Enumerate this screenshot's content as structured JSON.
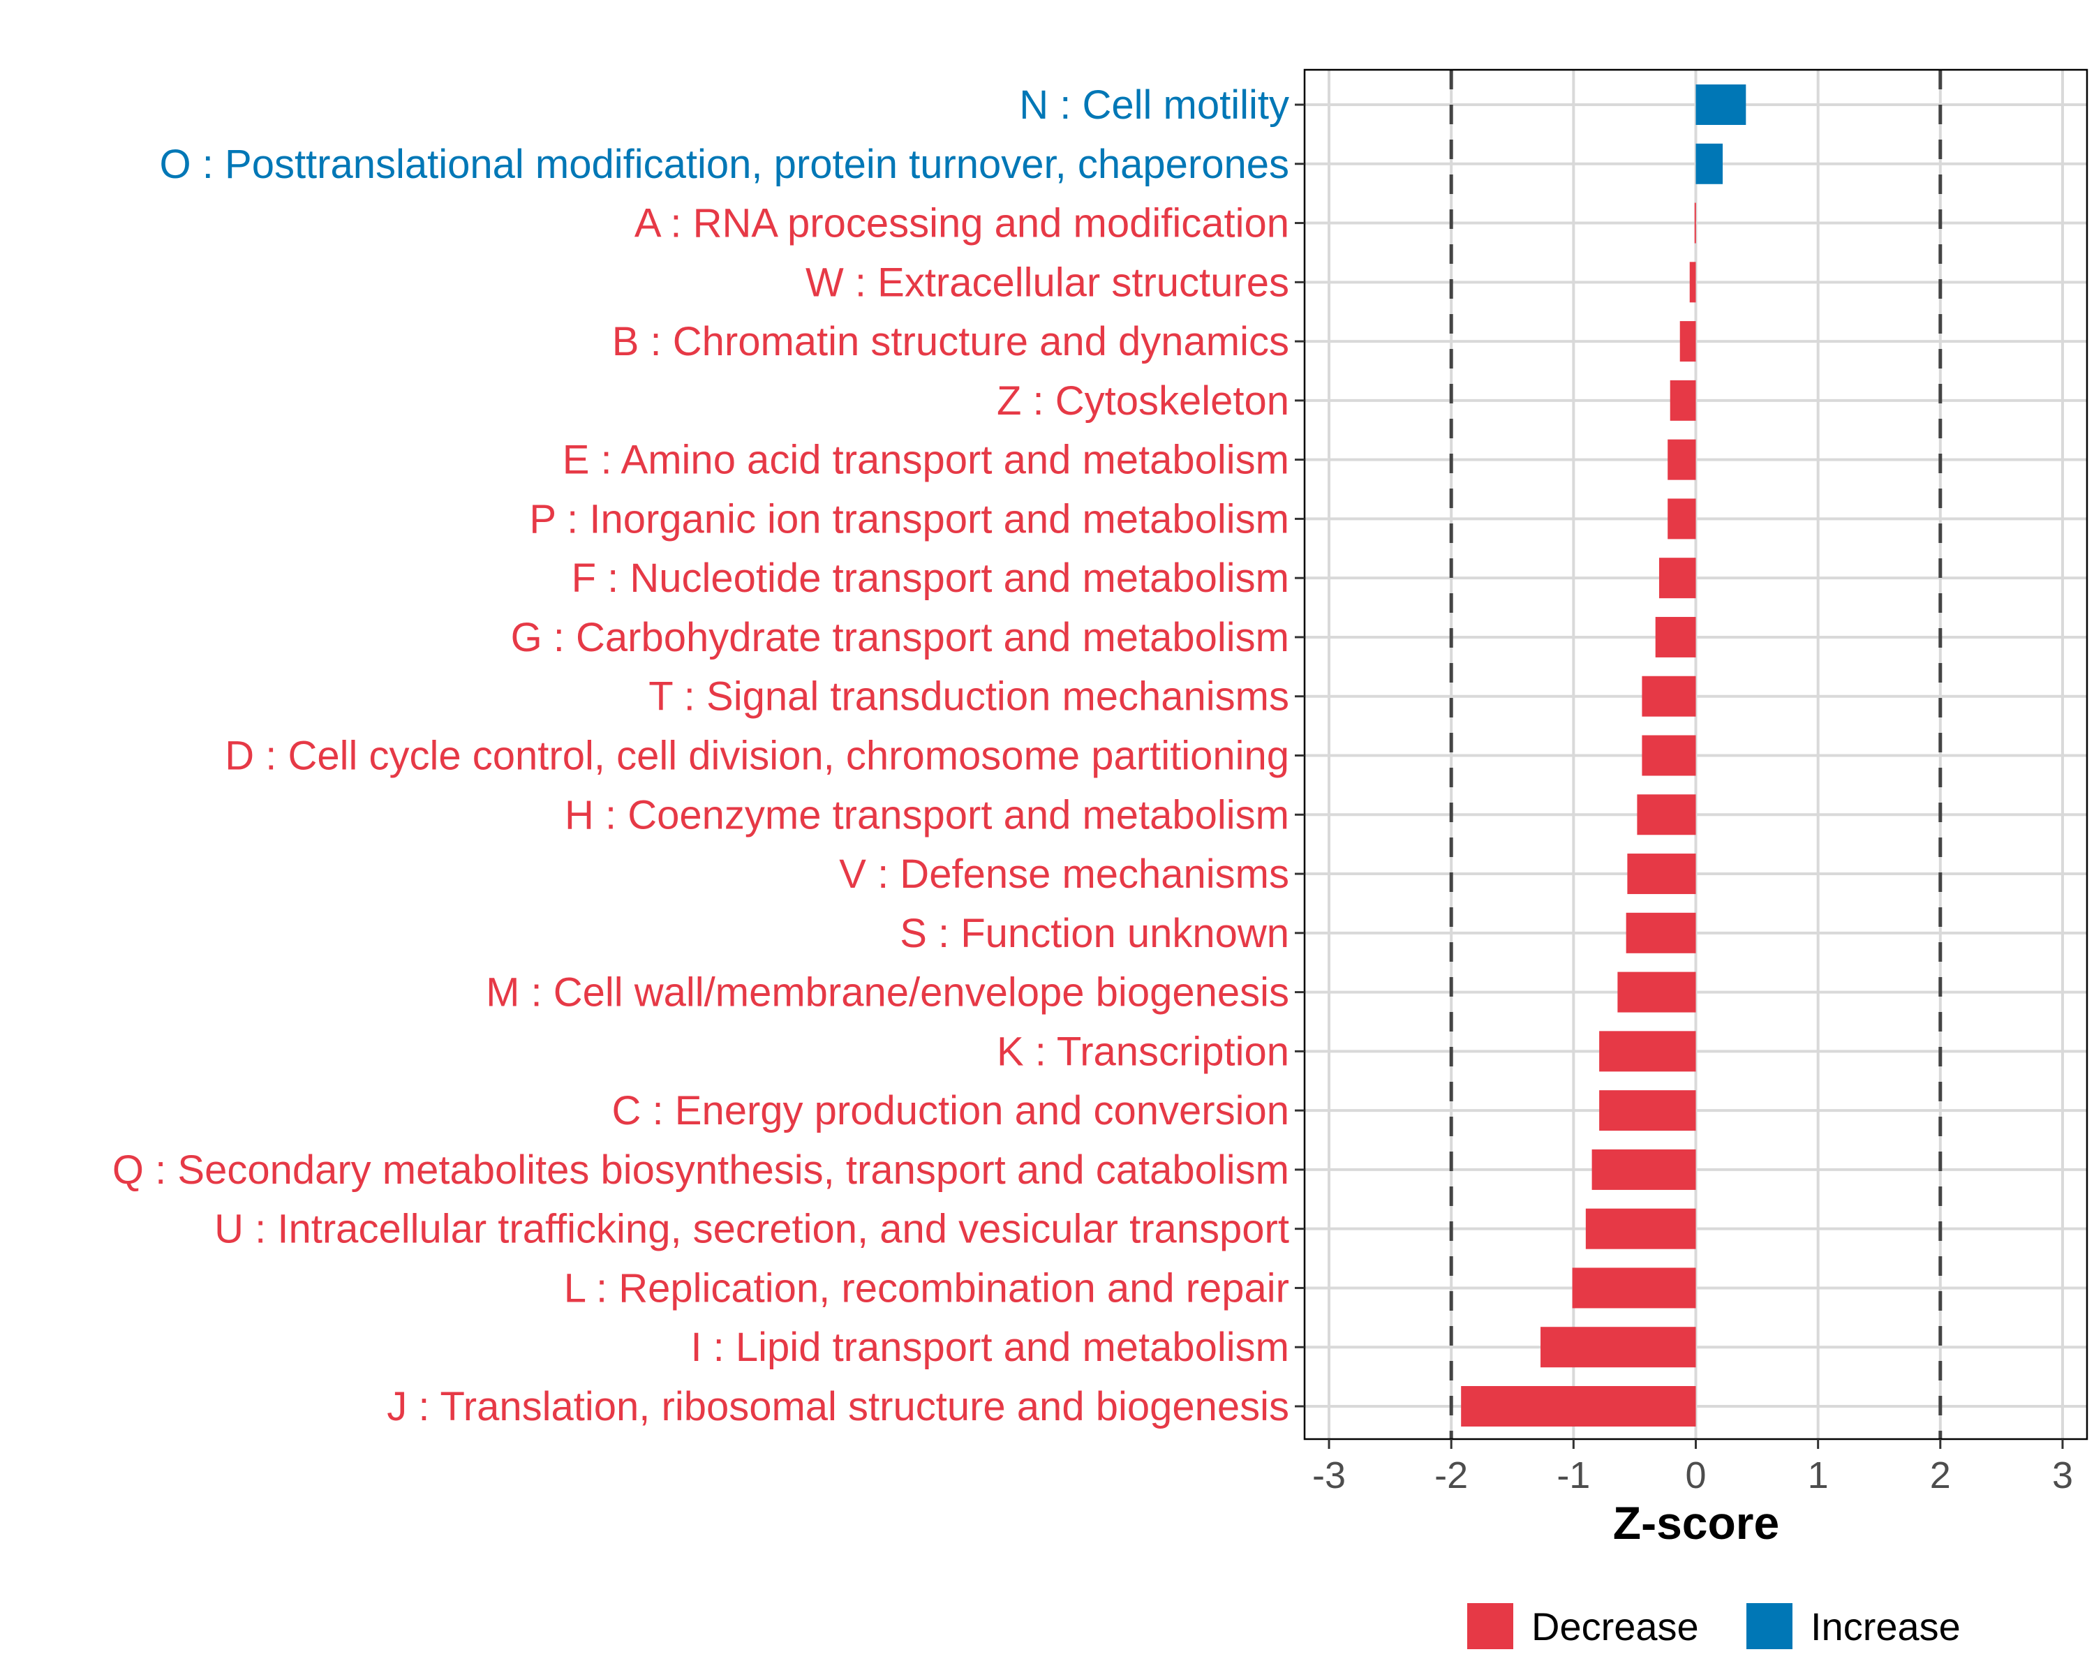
{
  "chart_data": {
    "type": "bar",
    "orientation": "horizontal",
    "title": "",
    "xlabel": "Z-score",
    "ylabel": "",
    "xlim": [
      -3.2,
      3.2
    ],
    "xticks": [
      -3,
      -2,
      -1,
      0,
      1,
      2,
      3
    ],
    "reference_lines": [
      -2,
      2
    ],
    "grid": true,
    "legend": {
      "position": "bottom",
      "entries": [
        {
          "name": "Decrease",
          "color": "#E63946"
        },
        {
          "name": "Increase",
          "color": "#0077B6"
        }
      ]
    },
    "categories": [
      "N : Cell motility",
      "O : Posttranslational modification, protein turnover, chaperones",
      "A : RNA processing and modification",
      "W : Extracellular structures",
      "B : Chromatin structure and dynamics",
      "Z : Cytoskeleton",
      "E : Amino acid transport and metabolism",
      "P : Inorganic ion transport and metabolism",
      "F : Nucleotide transport and metabolism",
      "G : Carbohydrate transport and metabolism",
      "T : Signal transduction mechanisms",
      "D : Cell cycle control, cell division, chromosome partitioning",
      "H : Coenzyme transport and metabolism",
      "V : Defense mechanisms",
      "S : Function unknown",
      "M : Cell wall/membrane/envelope biogenesis",
      "K : Transcription",
      "C : Energy production and conversion",
      "Q : Secondary metabolites biosynthesis, transport and catabolism",
      "U : Intracellular trafficking, secretion, and vesicular transport",
      "L : Replication, recombination and repair",
      "I : Lipid transport and metabolism",
      "J : Translation, ribosomal structure and biogenesis"
    ],
    "values": [
      0.41,
      0.22,
      -0.01,
      -0.05,
      -0.13,
      -0.21,
      -0.23,
      -0.23,
      -0.3,
      -0.33,
      -0.44,
      -0.44,
      -0.48,
      -0.56,
      -0.57,
      -0.64,
      -0.79,
      -0.79,
      -0.85,
      -0.9,
      -1.01,
      -1.27,
      -1.92
    ]
  }
}
